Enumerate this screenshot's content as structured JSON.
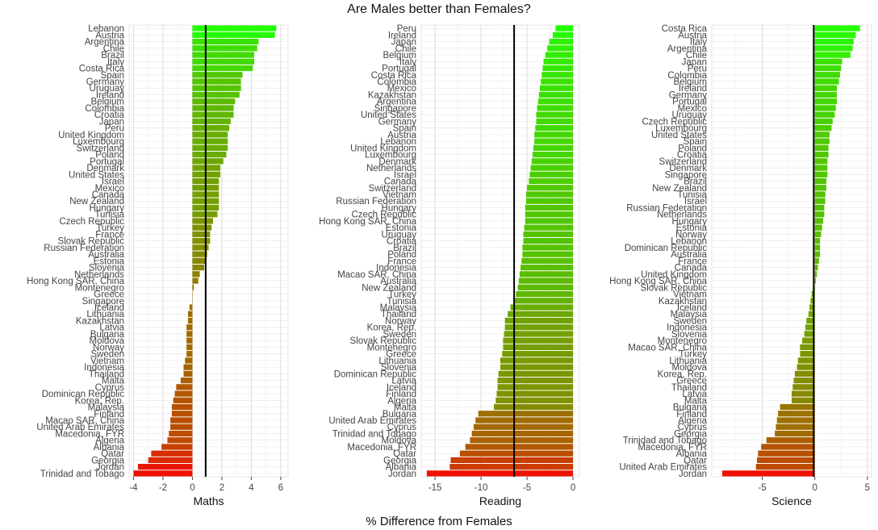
{
  "title": "Are Males better than Females?",
  "common_xlabel": "% Difference from Females",
  "chart_data": [
    {
      "type": "bar",
      "orientation": "horizontal",
      "xlabel": "Maths",
      "xlim": [
        -4.3,
        6.5
      ],
      "xticks": [
        -4,
        -2,
        0,
        2,
        4,
        6
      ],
      "reference_line": 0.9,
      "grid": true,
      "color_gradient": [
        "#ee1100",
        "#22ff00"
      ],
      "categories": [
        "Lebanon",
        "Austria",
        "Argentina",
        "Chile",
        "Brazil",
        "Italy",
        "Costa Rica",
        "Spain",
        "Germany",
        "Uruguay",
        "Ireland",
        "Belgium",
        "Colombia",
        "Croatia",
        "Japan",
        "Peru",
        "United Kingdom",
        "Luxembourg",
        "Switzerland",
        "Poland",
        "Portugal",
        "Denmark",
        "United States",
        "Israel",
        "Mexico",
        "Canada",
        "New Zealand",
        "Hungary",
        "Tunisia",
        "Czech Republic",
        "Turkey",
        "France",
        "Slovak Republic",
        "Russian Federation",
        "Australia",
        "Estonia",
        "Slovenia",
        "Netherlands",
        "Hong Kong SAR, China",
        "Montenegro",
        "Greece",
        "Singapore",
        "Iceland",
        "Lithuania",
        "Kazakhstan",
        "Latvia",
        "Bulgaria",
        "Moldova",
        "Norway",
        "Sweden",
        "Vietnam",
        "Indonesia",
        "Thailand",
        "Malta",
        "Cyprus",
        "Dominican Republic",
        "Korea, Rep.",
        "Malaysia",
        "Finland",
        "Macao SAR, China",
        "United Arab Emirates",
        "Macedonia, FYR",
        "Algeria",
        "Albania",
        "Qatar",
        "Georgia",
        "Jordan",
        "Trinidad and Tobago"
      ],
      "values": [
        5.7,
        5.6,
        4.5,
        4.4,
        4.2,
        4.2,
        4.1,
        3.4,
        3.3,
        3.3,
        3.2,
        2.9,
        2.8,
        2.8,
        2.6,
        2.5,
        2.4,
        2.4,
        2.4,
        2.3,
        2.1,
        1.9,
        1.9,
        1.8,
        1.8,
        1.8,
        1.8,
        1.8,
        1.7,
        1.4,
        1.3,
        1.2,
        1.2,
        1.1,
        1.0,
        0.9,
        0.8,
        0.5,
        0.4,
        0.1,
        0.0,
        0.0,
        -0.2,
        -0.3,
        -0.3,
        -0.4,
        -0.4,
        -0.4,
        -0.4,
        -0.4,
        -0.5,
        -0.6,
        -0.6,
        -0.8,
        -1.1,
        -1.2,
        -1.3,
        -1.4,
        -1.4,
        -1.5,
        -1.5,
        -1.6,
        -1.7,
        -2.1,
        -2.8,
        -3.0,
        -3.7,
        -4.0
      ]
    },
    {
      "type": "bar",
      "orientation": "horizontal",
      "xlabel": "Reading",
      "xlim": [
        -16.5,
        0.7
      ],
      "xticks": [
        -15,
        -10,
        -5,
        0
      ],
      "reference_line": -6.4,
      "grid": true,
      "color_gradient": [
        "#ee1100",
        "#22ff00"
      ],
      "categories": [
        "Peru",
        "Ireland",
        "Japan",
        "Chile",
        "Belgium",
        "Italy",
        "Portugal",
        "Costa Rica",
        "Colombia",
        "Mexico",
        "Kazakhstan",
        "Argentina",
        "Singapore",
        "United States",
        "Germany",
        "Spain",
        "Austria",
        "Lebanon",
        "United Kingdom",
        "Luxembourg",
        "Denmark",
        "Netherlands",
        "Israel",
        "Canada",
        "Switzerland",
        "Vietnam",
        "Russian Federation",
        "Hungary",
        "Czech Republic",
        "Hong Kong SAR, China",
        "Estonia",
        "Uruguay",
        "Croatia",
        "Brazil",
        "Poland",
        "France",
        "Indonesia",
        "Macao SAR, China",
        "Australia",
        "New Zealand",
        "Turkey",
        "Tunisia",
        "Malaysia",
        "Thailand",
        "Norway",
        "Korea, Rep.",
        "Sweden",
        "Slovak Republic",
        "Montenegro",
        "Greece",
        "Lithuania",
        "Slovenia",
        "Dominican Republic",
        "Latvia",
        "Iceland",
        "Finland",
        "Algeria",
        "Malta",
        "Bulgaria",
        "United Arab Emirates",
        "Cyprus",
        "Trinidad and Tobago",
        "Moldova",
        "Macedonia, FYR",
        "Qatar",
        "Georgia",
        "Albania",
        "Jordan"
      ],
      "values": [
        -1.9,
        -2.2,
        -2.6,
        -2.8,
        -3.0,
        -3.2,
        -3.3,
        -3.4,
        -3.5,
        -3.6,
        -3.7,
        -3.8,
        -3.9,
        -4.0,
        -4.0,
        -4.1,
        -4.2,
        -4.2,
        -4.3,
        -4.4,
        -4.5,
        -4.6,
        -4.7,
        -4.8,
        -5.0,
        -5.1,
        -5.1,
        -5.2,
        -5.2,
        -5.2,
        -5.3,
        -5.4,
        -5.4,
        -5.5,
        -5.5,
        -5.6,
        -5.7,
        -5.8,
        -5.9,
        -6.0,
        -6.2,
        -6.4,
        -6.8,
        -7.1,
        -7.4,
        -7.4,
        -7.5,
        -7.6,
        -7.6,
        -7.7,
        -7.9,
        -7.9,
        -8.1,
        -8.2,
        -8.2,
        -8.3,
        -8.4,
        -8.6,
        -10.3,
        -10.6,
        -10.8,
        -11.0,
        -11.2,
        -11.7,
        -12.3,
        -13.3,
        -13.4,
        -15.9
      ]
    },
    {
      "type": "bar",
      "orientation": "horizontal",
      "xlabel": "Science",
      "xlim": [
        -9.8,
        5.4
      ],
      "xticks": [
        -5,
        0,
        5
      ],
      "reference_line": -0.1,
      "grid": true,
      "color_gradient": [
        "#ee1100",
        "#22ff00"
      ],
      "categories": [
        "Costa Rica",
        "Austria",
        "Italy",
        "Argentina",
        "Chile",
        "Japan",
        "Peru",
        "Colombia",
        "Belgium",
        "Ireland",
        "Germany",
        "Portugal",
        "Mexico",
        "Uruguay",
        "Czech Republic",
        "Luxembourg",
        "United States",
        "Spain",
        "Poland",
        "Croatia",
        "Switzerland",
        "Denmark",
        "Singapore",
        "Brazil",
        "New Zealand",
        "Tunisia",
        "Israel",
        "Russian Federation",
        "Netherlands",
        "Hungary",
        "Estonia",
        "Norway",
        "Lebanon",
        "Dominican Republic",
        "Australia",
        "France",
        "Canada",
        "United Kingdom",
        "Hong Kong SAR, China",
        "Slovak Republic",
        "Vietnam",
        "Kazakhstan",
        "Iceland",
        "Malaysia",
        "Sweden",
        "Indonesia",
        "Slovenia",
        "Montenegro",
        "Macao SAR, China",
        "Turkey",
        "Lithuania",
        "Moldova",
        "Korea, Rep.",
        "Greece",
        "Thailand",
        "Latvia",
        "Malta",
        "Bulgaria",
        "Finland",
        "Algeria",
        "Cyprus",
        "Georgia",
        "Trinidad and Tobago",
        "Macedonia, FYR",
        "Albania",
        "Qatar",
        "United Arab Emirates",
        "Jordan"
      ],
      "values": [
        4.3,
        3.9,
        3.7,
        3.6,
        3.4,
        2.6,
        2.5,
        2.4,
        2.3,
        2.1,
        2.1,
        2.1,
        2.0,
        1.9,
        1.7,
        1.6,
        1.4,
        1.4,
        1.3,
        1.3,
        1.2,
        1.2,
        1.2,
        1.1,
        1.1,
        1.0,
        1.0,
        0.9,
        0.9,
        0.8,
        0.7,
        0.6,
        0.5,
        0.5,
        0.5,
        0.4,
        0.3,
        0.2,
        0.1,
        0.0,
        -0.3,
        -0.4,
        -0.5,
        -0.6,
        -0.8,
        -0.9,
        -1.0,
        -1.2,
        -1.4,
        -1.4,
        -1.6,
        -1.7,
        -1.9,
        -2.0,
        -2.1,
        -2.2,
        -2.2,
        -3.3,
        -3.5,
        -3.6,
        -3.7,
        -3.8,
        -4.6,
        -5.1,
        -5.4,
        -5.5,
        -5.6,
        -8.8
      ]
    }
  ]
}
